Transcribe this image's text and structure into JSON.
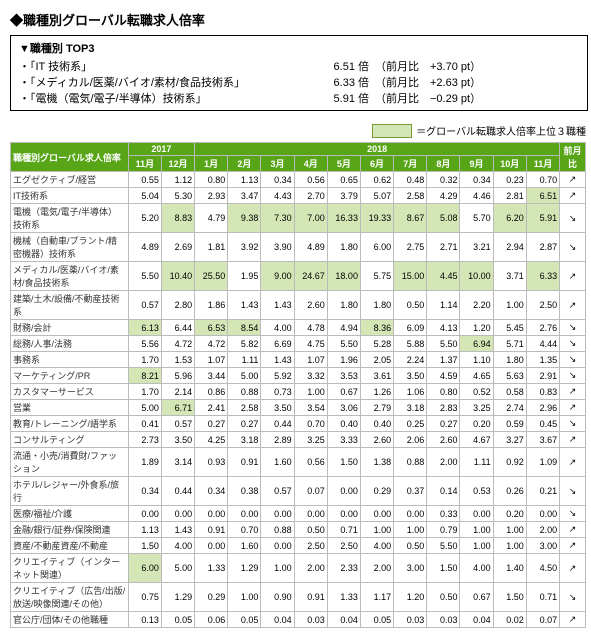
{
  "title": "◆職種別グローバル転職求人倍率",
  "top3": {
    "header": "▼職種別 TOP3",
    "rows": [
      {
        "label": "・「IT 技術系」",
        "value": "6.51 倍",
        "change": "（前月比　+3.70 pt）"
      },
      {
        "label": "・「メディカル/医薬/バイオ/素材/食品技術系」",
        "value": "6.33 倍",
        "change": "（前月比　+2.63 pt）"
      },
      {
        "label": "・「電機（電気/電子/半導体）技術系」",
        "value": "5.91 倍",
        "change": "（前月比　−0.29 pt）"
      }
    ]
  },
  "legend": "＝グローバル転職求人倍率上位３職種",
  "table": {
    "yearGroups": [
      {
        "label": "2017",
        "span": 2
      },
      {
        "label": "2018",
        "span": 11
      }
    ],
    "corner": "職種別グローバル求人倍率",
    "months": [
      "11月",
      "12月",
      "1月",
      "2月",
      "3月",
      "4月",
      "5月",
      "6月",
      "7月",
      "8月",
      "9月",
      "10月",
      "11月"
    ],
    "mom": "前月比",
    "rows": [
      {
        "label": "エグゼクティブ/経営",
        "vals": [
          "0.55",
          "1.12",
          "0.80",
          "1.13",
          "0.34",
          "0.56",
          "0.65",
          "0.62",
          "0.48",
          "0.32",
          "0.34",
          "0.23",
          "0.70"
        ],
        "hl": [],
        "arrow": "↗"
      },
      {
        "label": "IT技術系",
        "vals": [
          "5.04",
          "5.30",
          "2.93",
          "3.47",
          "4.43",
          "2.70",
          "3.79",
          "5.07",
          "2.58",
          "4.29",
          "4.46",
          "2.81",
          "6.51"
        ],
        "hl": [
          12
        ],
        "arrow": "↗"
      },
      {
        "label": "電機（電気/電子/半導体）技術系",
        "vals": [
          "5.20",
          "8.83",
          "4.79",
          "9.38",
          "7.30",
          "7.00",
          "16.33",
          "19.33",
          "8.67",
          "5.08",
          "5.70",
          "6.20",
          "5.91"
        ],
        "hl": [
          1,
          3,
          4,
          5,
          6,
          7,
          8,
          9,
          11,
          12
        ],
        "arrow": "↘"
      },
      {
        "label": "機械（自動車/プラント/精密機器）技術系",
        "vals": [
          "4.89",
          "2.69",
          "1.81",
          "3.92",
          "3.90",
          "4.89",
          "1.80",
          "6.00",
          "2.75",
          "2.71",
          "3.21",
          "2.94",
          "2.87"
        ],
        "hl": [],
        "arrow": "↘"
      },
      {
        "label": "メディカル/医薬/バイオ/素材/食品技術系",
        "vals": [
          "5.50",
          "10.40",
          "25.50",
          "1.95",
          "9.00",
          "24.67",
          "18.00",
          "5.75",
          "15.00",
          "4.45",
          "10.00",
          "3.71",
          "6.33"
        ],
        "hl": [
          1,
          2,
          4,
          5,
          6,
          8,
          9,
          10,
          12
        ],
        "arrow": "↗"
      },
      {
        "label": "建築/土木/設備/不動産技術系",
        "vals": [
          "0.57",
          "2.80",
          "1.86",
          "1.43",
          "1.43",
          "2.60",
          "1.80",
          "1.80",
          "0.50",
          "1.14",
          "2.20",
          "1.00",
          "2.50"
        ],
        "hl": [],
        "arrow": "↗"
      },
      {
        "label": "財務/会計",
        "vals": [
          "6.13",
          "6.44",
          "6.53",
          "8.54",
          "4.00",
          "4.78",
          "4.94",
          "8.36",
          "6.09",
          "4.13",
          "1.20",
          "5.45",
          "2.76"
        ],
        "hl": [
          0,
          2,
          3,
          7
        ],
        "arrow": "↘"
      },
      {
        "label": "総務/人事/法務",
        "vals": [
          "5.56",
          "4.72",
          "4.72",
          "5.82",
          "6.69",
          "4.75",
          "5.50",
          "5.28",
          "5.88",
          "5.50",
          "6.94",
          "5.71",
          "4.44"
        ],
        "hl": [
          10
        ],
        "arrow": "↘"
      },
      {
        "label": "事務系",
        "vals": [
          "1.70",
          "1.53",
          "1.07",
          "1.11",
          "1.43",
          "1.07",
          "1.96",
          "2.05",
          "2.24",
          "1.37",
          "1.10",
          "1.80",
          "1.35"
        ],
        "hl": [],
        "arrow": "↘"
      },
      {
        "label": "マーケティング/PR",
        "vals": [
          "8.21",
          "5.96",
          "3.44",
          "5.00",
          "5.92",
          "3.32",
          "3.53",
          "3.61",
          "3.50",
          "4.59",
          "4.65",
          "5.63",
          "2.91"
        ],
        "hl": [
          0
        ],
        "arrow": "↘"
      },
      {
        "label": "カスタマーサービス",
        "vals": [
          "1.70",
          "2.14",
          "0.86",
          "0.88",
          "0.73",
          "1.00",
          "0.67",
          "1.26",
          "1.06",
          "0.80",
          "0.52",
          "0.58",
          "0.83"
        ],
        "hl": [],
        "arrow": "↗"
      },
      {
        "label": "営業",
        "vals": [
          "5.00",
          "6.71",
          "2.41",
          "2.58",
          "3.50",
          "3.54",
          "3.06",
          "2.79",
          "3.18",
          "2.83",
          "3.25",
          "2.74",
          "2.96"
        ],
        "hl": [
          1
        ],
        "arrow": "↗"
      },
      {
        "label": "教育/トレーニング/語学系",
        "vals": [
          "0.41",
          "0.57",
          "0.27",
          "0.27",
          "0.44",
          "0.70",
          "0.40",
          "0.40",
          "0.25",
          "0.27",
          "0.20",
          "0.59",
          "0.45"
        ],
        "hl": [],
        "arrow": "↘"
      },
      {
        "label": "コンサルティング",
        "vals": [
          "2.73",
          "3.50",
          "4.25",
          "3.18",
          "2.89",
          "3.25",
          "3.33",
          "2.60",
          "2.06",
          "2.60",
          "4.67",
          "3.27",
          "3.67"
        ],
        "hl": [],
        "arrow": "↗"
      },
      {
        "label": "流通・小売/消費財/ファッション",
        "vals": [
          "1.89",
          "3.14",
          "0.93",
          "0.91",
          "1.60",
          "0.56",
          "1.50",
          "1.38",
          "0.88",
          "2.00",
          "1.11",
          "0.92",
          "1.09"
        ],
        "hl": [],
        "arrow": "↗"
      },
      {
        "label": "ホテル/レジャー/外食系/旅行",
        "vals": [
          "0.34",
          "0.44",
          "0.34",
          "0.38",
          "0.57",
          "0.07",
          "0.00",
          "0.29",
          "0.37",
          "0.14",
          "0.53",
          "0.26",
          "0.21"
        ],
        "hl": [],
        "arrow": "↘"
      },
      {
        "label": "医療/福祉/介護",
        "vals": [
          "0.00",
          "0.00",
          "0.00",
          "0.00",
          "0.00",
          "0.00",
          "0.00",
          "0.00",
          "0.00",
          "0.33",
          "0.00",
          "0.20",
          "0.00"
        ],
        "hl": [],
        "arrow": "↘"
      },
      {
        "label": "金融/銀行/証券/保険関連",
        "vals": [
          "1.13",
          "1.43",
          "0.91",
          "0.70",
          "0.88",
          "0.50",
          "0.71",
          "1.00",
          "1.00",
          "0.79",
          "1.00",
          "1.00",
          "2.00"
        ],
        "hl": [],
        "arrow": "↗"
      },
      {
        "label": "資産/不動産資産/不動産",
        "vals": [
          "1.50",
          "4.00",
          "0.00",
          "1.60",
          "0.00",
          "2.50",
          "2.50",
          "4.00",
          "0.50",
          "5.50",
          "1.00",
          "1.00",
          "3.00"
        ],
        "hl": [],
        "arrow": "↗"
      },
      {
        "label": "クリエイティブ（インターネット関連）",
        "vals": [
          "6.00",
          "5.00",
          "1.33",
          "1.29",
          "1.00",
          "2.00",
          "2.33",
          "2.00",
          "3.00",
          "1.50",
          "4.00",
          "1.40",
          "4.50"
        ],
        "hl": [
          0
        ],
        "arrow": "↗"
      },
      {
        "label": "クリエイティブ（広告/出版/放送/映像関連/その他）",
        "vals": [
          "0.75",
          "1.29",
          "0.29",
          "1.00",
          "0.90",
          "0.91",
          "1.33",
          "1.17",
          "1.20",
          "0.50",
          "0.67",
          "1.50",
          "0.71"
        ],
        "hl": [],
        "arrow": "↘"
      },
      {
        "label": "官公庁/団体/その他職種",
        "vals": [
          "0.13",
          "0.05",
          "0.06",
          "0.05",
          "0.04",
          "0.03",
          "0.04",
          "0.05",
          "0.03",
          "0.03",
          "0.04",
          "0.02",
          "0.07"
        ],
        "hl": [],
        "arrow": "↗"
      }
    ]
  }
}
